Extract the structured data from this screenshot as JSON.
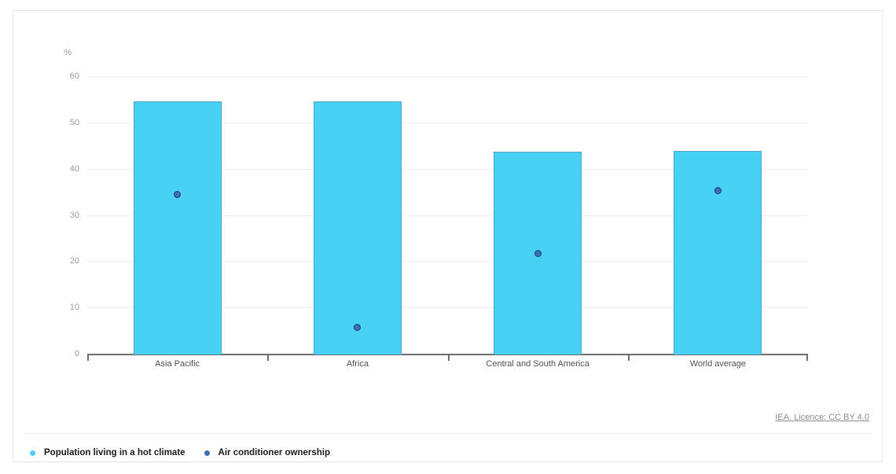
{
  "card": {
    "background": "#ffffff",
    "border_color": "#e4e4e4"
  },
  "chart_data": {
    "type": "bar",
    "title": "",
    "unit_label": "%",
    "categories": [
      "Asia Pacific",
      "Africa",
      "Central and South America",
      "World average"
    ],
    "series": [
      {
        "name": "Population living in a hot climate",
        "mark": "bar",
        "values": [
          54.7,
          54.7,
          43.8,
          44.1
        ],
        "color": "#47d1f5",
        "border_color": "#4ea4c4"
      },
      {
        "name": "Air conditioner ownership",
        "mark": "point",
        "values": [
          34.6,
          5.9,
          21.9,
          35.4
        ],
        "color": "#3d6eb5",
        "border_color": "#1e3d70"
      }
    ],
    "ylim": [
      0,
      60
    ],
    "yticks": [
      0,
      10,
      20,
      30,
      40,
      50,
      60
    ],
    "grid": true,
    "legend_position": "bottom-left"
  },
  "footer": {
    "licence_text": "IEA. Licence: CC BY 4.0"
  },
  "colors": {
    "grid": "#ededed",
    "axis": "#6e6e6e",
    "tick_label": "#9c9c9c",
    "category_label": "#4f4f4f",
    "legend_text": "#1a1a1a",
    "licence_text": "#8c8c8c"
  }
}
